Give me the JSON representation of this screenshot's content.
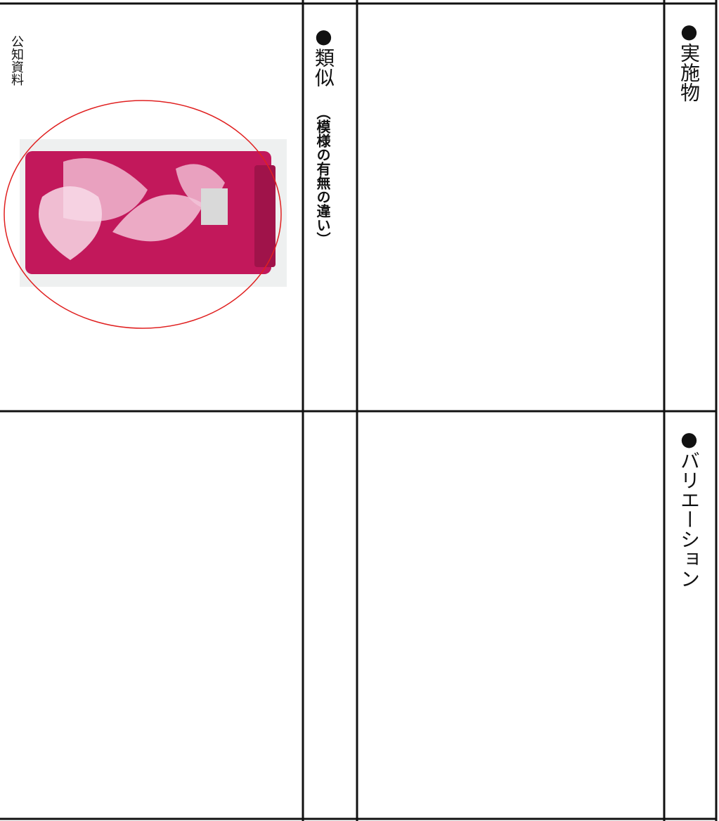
{
  "table": {
    "top_row": {
      "implementation": "●実施物",
      "similar": "●類似",
      "similar_note": "（模様の有無の違い）",
      "reference": "公知資料"
    },
    "bottom_row": {
      "variation": "●バリエーション"
    }
  }
}
